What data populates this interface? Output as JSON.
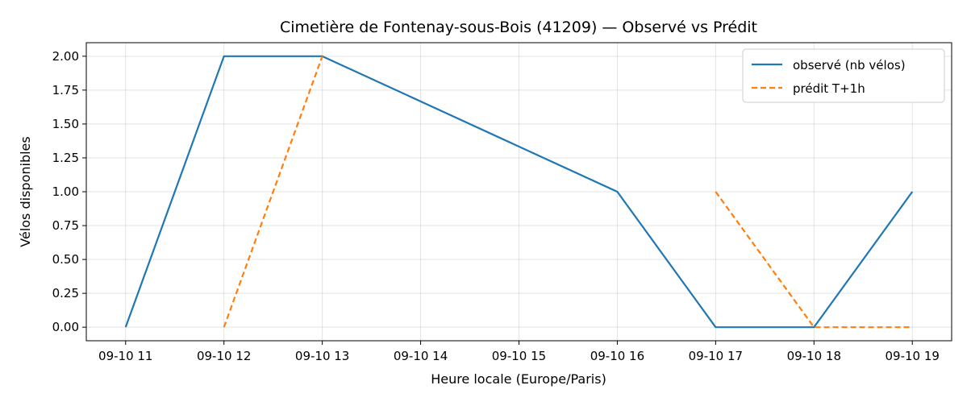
{
  "chart_data": {
    "type": "line",
    "title": "Cimetière de Fontenay-sous-Bois (41209) — Observé vs Prédit",
    "xlabel": "Heure locale (Europe/Paris)",
    "ylabel": "Vélos disponibles",
    "x_ticks": [
      "09-10 11",
      "09-10 12",
      "09-10 13",
      "09-10 14",
      "09-10 15",
      "09-10 16",
      "09-10 17",
      "09-10 18",
      "09-10 19"
    ],
    "y_ticks": [
      "0.00",
      "0.25",
      "0.50",
      "0.75",
      "1.00",
      "1.25",
      "1.50",
      "1.75",
      "2.00"
    ],
    "xlim": [
      10.6,
      19.4
    ],
    "ylim": [
      -0.1,
      2.1
    ],
    "grid": true,
    "legend_position": "top-right",
    "series": [
      {
        "name": "observé (nb vélos)",
        "color": "#1f77b4",
        "style": "solid",
        "x": [
          11,
          12,
          13,
          16,
          17,
          18,
          19
        ],
        "y": [
          0,
          2,
          2,
          1,
          0,
          0,
          1
        ]
      },
      {
        "name": "prédit T+1h",
        "color": "#ff7f0e",
        "style": "dashed",
        "segments": [
          {
            "x": [
              12,
              13
            ],
            "y": [
              0,
              2
            ]
          },
          {
            "x": [
              17,
              18,
              19
            ],
            "y": [
              1,
              0,
              0
            ]
          }
        ]
      }
    ]
  }
}
